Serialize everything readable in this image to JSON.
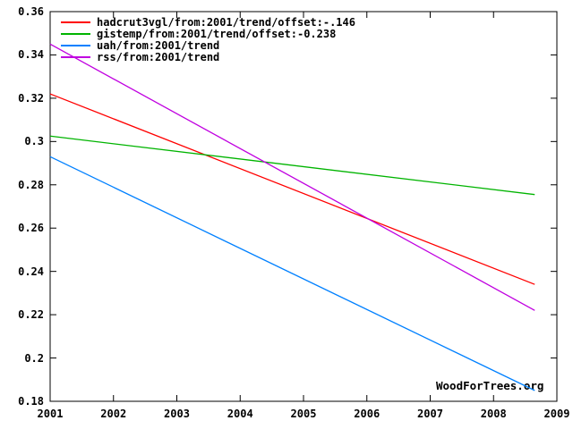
{
  "watermark": "WoodForTrees.org",
  "chart_data": {
    "type": "line",
    "title": "",
    "xlabel": "",
    "ylabel": "",
    "grid": false,
    "legend_position": "top-left",
    "x_axis": {
      "min": 2001,
      "max": 2009,
      "tick_values": [
        2001,
        2002,
        2003,
        2004,
        2005,
        2006,
        2007,
        2008,
        2009
      ],
      "tick_labels": [
        "2001",
        "2002",
        "2003",
        "2004",
        "2005",
        "2006",
        "2007",
        "2008",
        "2009"
      ]
    },
    "y_axis": {
      "min": 0.18,
      "max": 0.36,
      "tick_values": [
        0.36,
        0.34,
        0.32,
        0.3,
        0.28,
        0.26,
        0.24,
        0.22,
        0.2,
        0.18
      ],
      "tick_labels": [
        "0.36",
        "0.34",
        "0.32",
        "0.3",
        "0.28",
        "0.26",
        "0.24",
        "0.22",
        "0.2",
        "0.18"
      ]
    },
    "series": [
      {
        "label": "hadcrut3vgl/from:2001/trend/offset:-.146",
        "color": "#ff0000",
        "points": [
          [
            2001.0,
            0.322
          ],
          [
            2008.65,
            0.234
          ]
        ]
      },
      {
        "label": "gistemp/from:2001/trend/offset:-0.238",
        "color": "#00b400",
        "points": [
          [
            2001.0,
            0.3025
          ],
          [
            2008.65,
            0.2755
          ]
        ]
      },
      {
        "label": "uah/from:2001/trend",
        "color": "#0080ff",
        "points": [
          [
            2001.0,
            0.293
          ],
          [
            2008.65,
            0.185
          ]
        ]
      },
      {
        "label": "rss/from:2001/trend",
        "color": "#c000e0",
        "points": [
          [
            2001.0,
            0.345
          ],
          [
            2008.65,
            0.222
          ]
        ]
      }
    ]
  }
}
